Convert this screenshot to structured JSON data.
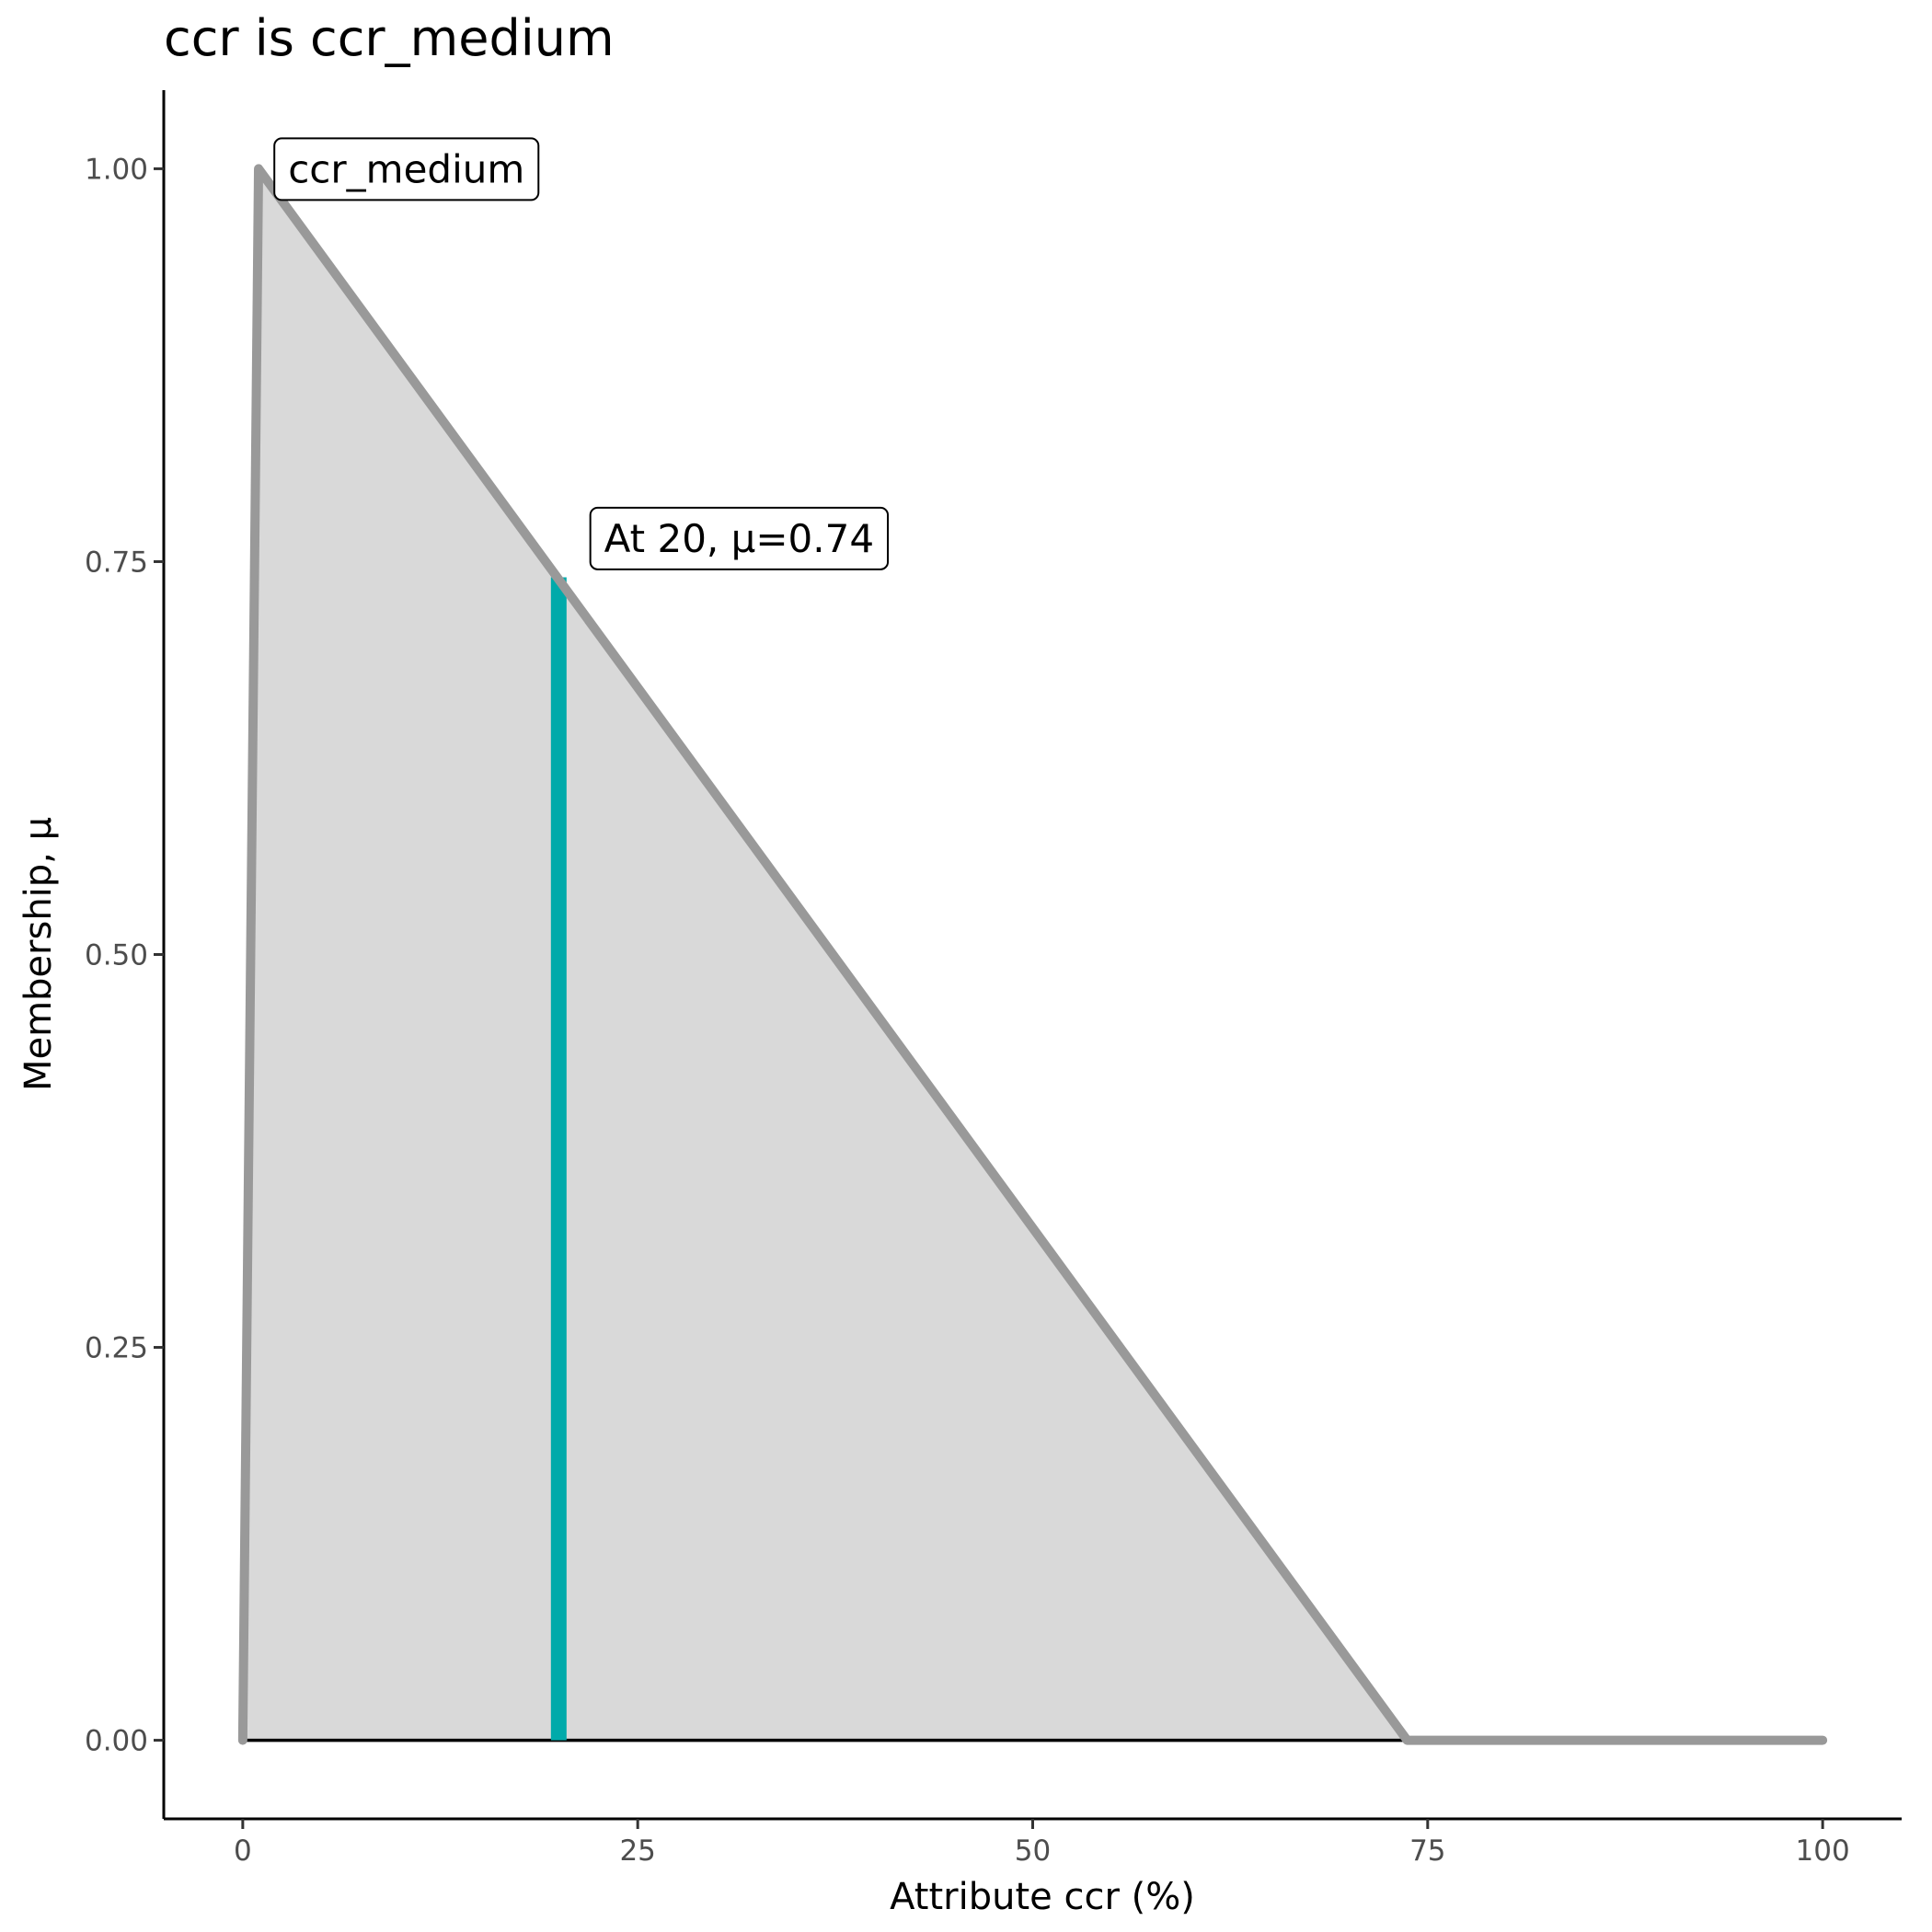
{
  "chart_data": {
    "type": "area",
    "title": "ccr is ccr_medium",
    "xlabel": "Attribute ccr (%)",
    "ylabel": "Membership, μ",
    "xlim": [
      -5,
      105
    ],
    "ylim": [
      -0.05,
      1.05
    ],
    "x_ticks": [
      0,
      25,
      50,
      75,
      100
    ],
    "y_ticks": [
      0,
      0.25,
      0.5,
      0.75,
      1
    ],
    "x_tick_labels": [
      "0",
      "25",
      "50",
      "75",
      "100"
    ],
    "y_tick_labels": [
      "0.00",
      "0.25",
      "0.50",
      "0.75",
      "1.00"
    ],
    "grid": false,
    "series": [
      {
        "x": [
          0,
          1,
          73.7,
          100
        ],
        "y": [
          0,
          1,
          0,
          0
        ],
        "color": "#999999",
        "fill": "#d9d9d9"
      }
    ],
    "baseline": {
      "x": [
        0,
        100
      ],
      "y": 0,
      "color": "#000000"
    },
    "highlight": {
      "x": 20,
      "y": 0.74,
      "color": "#00aaaa"
    },
    "annotations": [
      {
        "text": "ccr_medium",
        "x": 2,
        "y": 1
      },
      {
        "text": "At 20, μ=0.74",
        "x": 22,
        "y": 0.765
      }
    ]
  }
}
